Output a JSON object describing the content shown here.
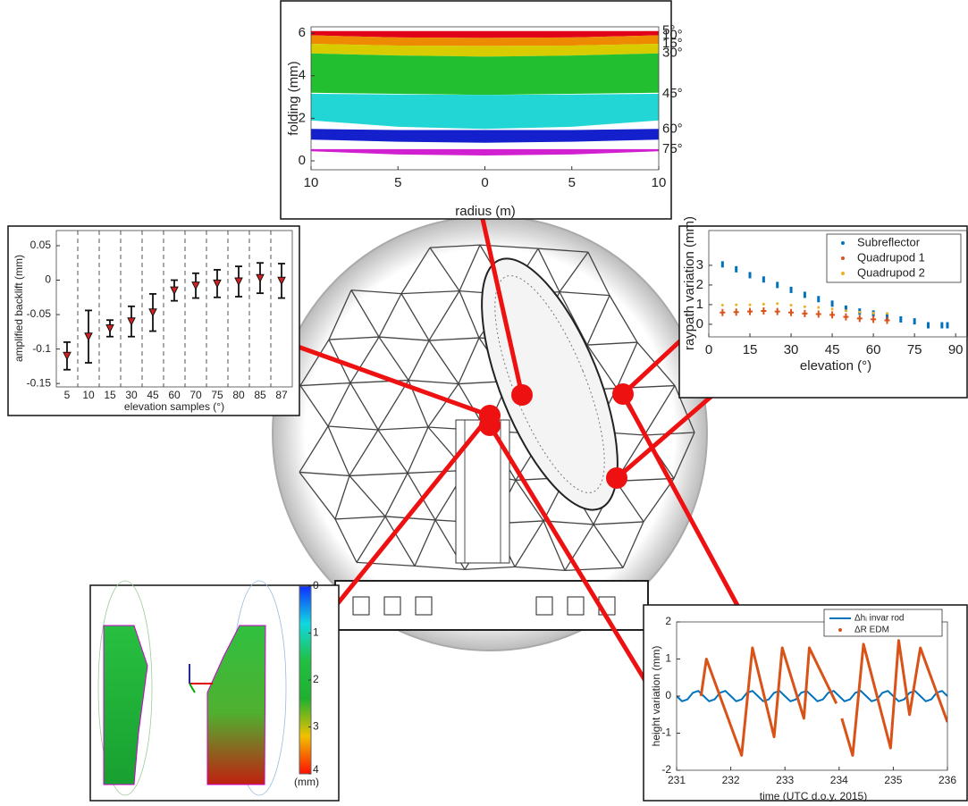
{
  "chart_data": [
    {
      "type": "area",
      "xlabel": "radius (m)",
      "ylabel": "folding (mm)",
      "x": [
        -10,
        -5,
        0,
        5,
        10
      ],
      "xlim": [
        -10,
        10
      ],
      "xticks": [
        {
          "value": -10,
          "label": "10"
        },
        {
          "value": -5,
          "label": "5"
        },
        0,
        5,
        10
      ],
      "ylim": [
        -0.42,
        6.3
      ],
      "yticks": [
        0,
        2,
        4,
        6
      ],
      "series": [
        {
          "name": "5°",
          "color": "#e00018",
          "values": [
            6.1,
            6.1,
            6.1,
            6.1,
            6.1
          ],
          "lower": [
            5.9,
            5.8,
            5.78,
            5.8,
            5.9
          ]
        },
        {
          "name": "10°",
          "color": "#ee8a00",
          "values": [
            5.9,
            5.8,
            5.78,
            5.8,
            5.9
          ],
          "lower": [
            5.5,
            5.42,
            5.4,
            5.42,
            5.5
          ]
        },
        {
          "name": "15°",
          "color": "#d8cc00",
          "values": [
            5.5,
            5.42,
            5.4,
            5.42,
            5.5
          ],
          "lower": [
            5.05,
            4.95,
            4.9,
            4.95,
            5.05
          ]
        },
        {
          "name": "30°",
          "color": "#22c030",
          "values": [
            5.05,
            4.95,
            4.9,
            4.95,
            5.05
          ],
          "lower": [
            3.2,
            3.15,
            3.1,
            3.15,
            3.2
          ]
        },
        {
          "name": "45°",
          "color": "#22d6d6",
          "values": [
            3.15,
            3.12,
            3.1,
            3.12,
            3.15
          ],
          "lower": [
            1.9,
            1.6,
            1.5,
            1.6,
            1.9
          ]
        },
        {
          "name": "60°",
          "color": "#1420cc",
          "values": [
            1.5,
            1.45,
            1.45,
            1.45,
            1.5
          ],
          "lower": [
            1.0,
            0.9,
            0.85,
            0.9,
            1.0
          ]
        },
        {
          "name": "75°",
          "color": "#d020d0",
          "values": [
            0.55,
            0.55,
            0.55,
            0.55,
            0.55
          ],
          "lower": [
            0.45,
            0.3,
            0.25,
            0.3,
            0.45
          ]
        }
      ]
    },
    {
      "type": "errorbar",
      "xlabel": "elevation samples (°)",
      "ylabel": "amplified backlift (mm)",
      "categories": [
        "5",
        "10",
        "15",
        "30",
        "45",
        "60",
        "70",
        "75",
        "80",
        "85",
        "87"
      ],
      "values": [
        -0.11,
        -0.082,
        -0.07,
        -0.06,
        -0.047,
        -0.015,
        -0.008,
        -0.005,
        -0.002,
        0.003,
        -0.001
      ],
      "errors": [
        0.02,
        0.038,
        0.012,
        0.022,
        0.027,
        0.015,
        0.018,
        0.02,
        0.022,
        0.022,
        0.025
      ],
      "color": "#d42020",
      "ylim": [
        -0.155,
        0.072
      ],
      "yticks": [
        -0.15,
        -0.1,
        -0.05,
        0,
        0.05
      ]
    },
    {
      "type": "scatter",
      "xlabel": "elevation (°)",
      "ylabel": "raypath variation (mm)",
      "xlim": [
        0,
        94.5
      ],
      "xticks": [
        0,
        15,
        30,
        45,
        60,
        75,
        90
      ],
      "ylim": [
        -0.64,
        4.77
      ],
      "yticks": [
        0,
        1,
        2,
        3
      ],
      "legend": "top-right",
      "series": [
        {
          "name": "Subreflector",
          "color": "#0072bd",
          "x": [
            5,
            10,
            15,
            20,
            25,
            30,
            35,
            40,
            45,
            50,
            55,
            60,
            65,
            70,
            75,
            80,
            85,
            87
          ],
          "values": [
            3.05,
            2.8,
            2.5,
            2.28,
            2.0,
            1.75,
            1.5,
            1.28,
            1.05,
            0.8,
            0.65,
            0.55,
            0.38,
            0.25,
            0.15,
            -0.05,
            -0.05,
            -0.05
          ]
        },
        {
          "name": "Quadrupod 1",
          "color": "#d95319",
          "x": [
            5,
            10,
            15,
            20,
            25,
            30,
            35,
            40,
            45,
            50,
            55,
            60,
            65
          ],
          "values": [
            0.6,
            0.62,
            0.65,
            0.68,
            0.65,
            0.6,
            0.55,
            0.52,
            0.48,
            0.38,
            0.3,
            0.25,
            0.2
          ]
        },
        {
          "name": "Quadrupod 2",
          "color": "#edb120",
          "x": [
            5,
            10,
            15,
            20,
            25,
            30,
            35,
            40,
            45,
            50,
            55,
            60,
            65
          ],
          "values": [
            0.7,
            0.72,
            0.72,
            0.75,
            0.78,
            0.7,
            0.62,
            0.58,
            0.5,
            0.42,
            0.35,
            0.3,
            0.28
          ]
        }
      ]
    },
    {
      "type": "line",
      "xlabel": "time (UTC d.o.y. 2015)",
      "ylabel": "height variation (mm)",
      "xlim": [
        231,
        236
      ],
      "xticks": [
        231,
        232,
        233,
        234,
        235,
        236
      ],
      "ylim": [
        -2,
        2
      ],
      "yticks": [
        -2,
        -1,
        0,
        1,
        2
      ],
      "legend": "top-right",
      "series": [
        {
          "name": "Δhᵢ invar rod",
          "color": "#0072bd",
          "x": [
            231,
            231.1,
            231.2,
            231.3,
            231.4,
            231.5,
            231.6,
            231.7,
            231.8,
            231.9,
            232,
            232.1,
            232.2,
            232.3,
            232.4,
            232.5,
            232.6,
            232.7,
            232.8,
            232.9,
            233,
            233.1,
            233.2,
            233.3,
            233.4,
            233.5,
            233.6,
            233.7,
            233.8,
            233.9,
            234,
            234.1,
            234.2,
            234.3,
            234.4,
            234.5,
            234.6,
            234.7,
            234.8,
            234.9,
            235,
            235.1,
            235.2,
            235.3,
            235.4,
            235.5,
            235.6,
            235.7,
            235.8,
            235.9,
            236
          ],
          "values": [
            0,
            -0.14,
            -0.09,
            0.09,
            0.14,
            0,
            -0.14,
            -0.09,
            0.09,
            0.14,
            0,
            -0.14,
            -0.09,
            0.09,
            0.14,
            0,
            -0.14,
            -0.09,
            0.09,
            0.14,
            0,
            -0.14,
            -0.09,
            0.09,
            0.14,
            0,
            -0.14,
            -0.09,
            0.09,
            0.14,
            0,
            -0.14,
            -0.09,
            0.09,
            0.14,
            0,
            -0.14,
            -0.09,
            0.09,
            0.14,
            0,
            -0.14,
            -0.09,
            0.09,
            0.14,
            0,
            -0.14,
            -0.09,
            0.09,
            0.14,
            0
          ]
        },
        {
          "name": "ΔR EDM",
          "color": "#d95319",
          "x": [
            231.45,
            231.55,
            232.2,
            232.4,
            232.8,
            232.95,
            233.35,
            233.45,
            233.95,
            234.0,
            234.05,
            234.25,
            234.45,
            234.95,
            235.1,
            235.3,
            235.5,
            236.0
          ],
          "values": [
            0.0,
            1.0,
            -1.6,
            1.3,
            -1.1,
            1.3,
            -0.6,
            1.3,
            -0.2,
            null,
            -0.6,
            -1.6,
            1.4,
            -1.4,
            1.5,
            -0.5,
            1.3,
            -0.7
          ]
        }
      ]
    },
    {
      "type": "colorbar",
      "label": "(mm)",
      "ylim": [
        4,
        0
      ],
      "yticks": [
        0,
        1,
        2,
        3,
        4
      ],
      "colors": [
        "#1030ff",
        "#10d8e0",
        "#20c040",
        "#20b030",
        "#f0c000",
        "#ff1000"
      ]
    }
  ]
}
